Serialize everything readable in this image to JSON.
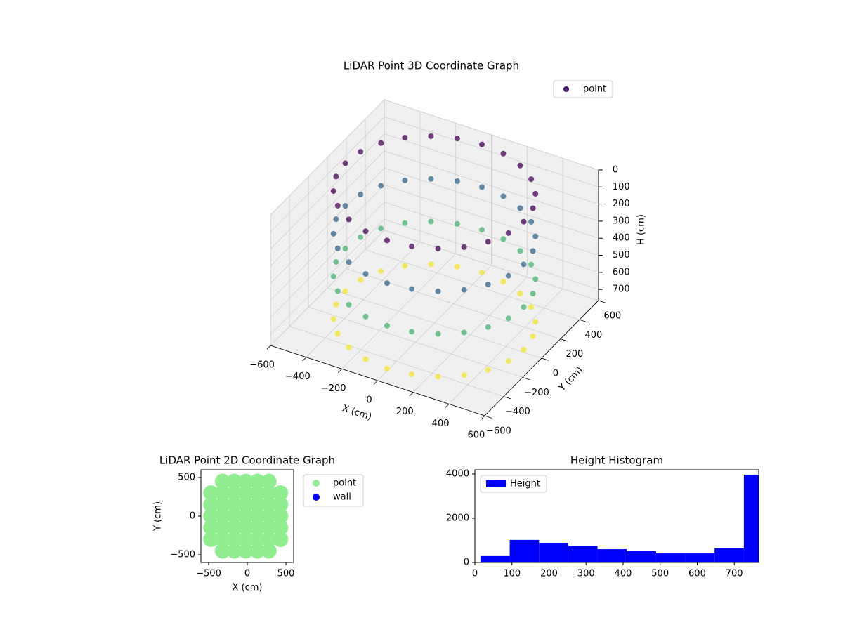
{
  "chart_data": [
    {
      "type": "scatter3d",
      "title": "LiDAR Point 3D Coordinate Graph",
      "xlabel": "X (cm)",
      "ylabel": "Y (cm)",
      "zlabel": "H (cm)",
      "xlim": [
        -600,
        600
      ],
      "ylim": [
        -600,
        600
      ],
      "zlim": [
        0,
        765
      ],
      "z_inverted": true,
      "colormap": "viridis",
      "grid": true,
      "legend": "upper right",
      "xticks": [
        {
          "value": -600,
          "label": "−600"
        },
        {
          "value": -400,
          "label": "−400"
        },
        {
          "value": -200,
          "label": "−200"
        },
        0,
        200,
        400,
        600
      ],
      "yticks": [
        {
          "value": -600,
          "label": "−600"
        },
        {
          "value": -400,
          "label": "−400"
        },
        {
          "value": -200,
          "label": "−200"
        },
        0,
        200,
        400,
        600
      ],
      "zticks": [
        0,
        100,
        200,
        300,
        400,
        500,
        600,
        700
      ],
      "series": [
        {
          "name": "point",
          "color": "#481c6e",
          "x": [
            500,
            483,
            433,
            354,
            250,
            129,
            0,
            -129,
            -250,
            -354,
            -433,
            -483,
            -500,
            -483,
            -433,
            -354,
            -250,
            -129,
            0,
            129,
            250,
            354,
            433,
            483,
            500,
            483,
            433,
            354,
            250,
            129,
            0,
            -129,
            -250,
            -354,
            -433,
            -483,
            -500,
            -483,
            -433,
            -354,
            -250,
            -129,
            0,
            129,
            250,
            354,
            433,
            483,
            500,
            483,
            433,
            354,
            250,
            129,
            0,
            -129,
            -250,
            -354,
            -433,
            -483,
            -500,
            -483,
            -433,
            -354,
            -250,
            -129,
            0,
            129,
            250,
            354,
            433,
            483,
            500,
            483,
            433,
            354,
            250,
            129,
            0,
            -129,
            -250,
            -354,
            -433,
            -483,
            -500,
            -483,
            -433,
            -354,
            -250,
            -129,
            0,
            129,
            250,
            354,
            433,
            483
          ],
          "y": [
            0,
            129,
            250,
            354,
            433,
            483,
            500,
            483,
            433,
            354,
            250,
            129,
            0,
            -129,
            -250,
            -354,
            -433,
            -483,
            -500,
            -483,
            -433,
            -354,
            -250,
            -129,
            0,
            129,
            250,
            354,
            433,
            483,
            500,
            483,
            433,
            354,
            250,
            129,
            0,
            -129,
            -250,
            -354,
            -433,
            -483,
            -500,
            -483,
            -433,
            -354,
            -250,
            -129,
            0,
            129,
            250,
            354,
            433,
            483,
            500,
            483,
            433,
            354,
            250,
            129,
            0,
            -129,
            -250,
            -354,
            -433,
            -483,
            -500,
            -483,
            -433,
            -354,
            -250,
            -129,
            0,
            129,
            250,
            354,
            433,
            483,
            500,
            483,
            433,
            354,
            250,
            129,
            0,
            -129,
            -250,
            -354,
            -433,
            -483,
            -500,
            -483,
            -433,
            -354,
            -250,
            -129
          ],
          "z": [
            0,
            0,
            0,
            0,
            0,
            0,
            0,
            0,
            0,
            0,
            0,
            0,
            0,
            0,
            0,
            0,
            0,
            0,
            0,
            0,
            0,
            0,
            0,
            0,
            250,
            250,
            250,
            250,
            250,
            250,
            250,
            250,
            250,
            250,
            250,
            250,
            250,
            250,
            250,
            250,
            250,
            250,
            250,
            250,
            250,
            250,
            250,
            250,
            500,
            500,
            500,
            500,
            500,
            500,
            500,
            500,
            500,
            500,
            500,
            500,
            500,
            500,
            500,
            500,
            500,
            500,
            500,
            500,
            500,
            500,
            500,
            500,
            750,
            750,
            750,
            750,
            750,
            750,
            750,
            750,
            750,
            750,
            750,
            750,
            750,
            750,
            750,
            750,
            750,
            750,
            750,
            750,
            750,
            750,
            750,
            750
          ]
        }
      ]
    },
    {
      "type": "scatter",
      "title": "LiDAR Point 2D Coordinate Graph",
      "xlabel": "X (cm)",
      "ylabel": "Y (cm)",
      "xlim": [
        -600,
        600
      ],
      "ylim": [
        -600,
        600
      ],
      "legend": "outside right",
      "xticks": [
        {
          "value": -500,
          "label": "−500"
        },
        0,
        500
      ],
      "yticks": [
        {
          "value": -500,
          "label": "−500"
        },
        0,
        500
      ],
      "series": [
        {
          "name": "point",
          "color": "#90ee90",
          "x": [
            -470,
            -470,
            -470,
            -470,
            -470,
            -320,
            -320,
            -320,
            -320,
            -320,
            -320,
            -320,
            -170,
            -170,
            -170,
            -170,
            -170,
            -170,
            -170,
            -20,
            -20,
            -20,
            -20,
            -20,
            -20,
            -20,
            130,
            130,
            130,
            130,
            130,
            130,
            130,
            280,
            280,
            280,
            280,
            280,
            280,
            280,
            430,
            430,
            430,
            430,
            430
          ],
          "y": [
            -300,
            -150,
            0,
            150,
            300,
            -450,
            -300,
            -150,
            0,
            150,
            300,
            450,
            -450,
            -300,
            -150,
            0,
            150,
            300,
            450,
            -450,
            -300,
            -150,
            0,
            150,
            300,
            450,
            -450,
            -300,
            -150,
            0,
            150,
            300,
            450,
            -450,
            -300,
            -150,
            0,
            150,
            300,
            450,
            -300,
            -150,
            0,
            150,
            300
          ]
        },
        {
          "name": "wall",
          "color": "#0000ff",
          "x": [],
          "y": []
        }
      ]
    },
    {
      "type": "histogram",
      "title": "Height Histogram",
      "xlim": [
        0,
        766
      ],
      "ylim": [
        0,
        4190
      ],
      "legend": "upper left",
      "xticks": [
        0,
        100,
        200,
        300,
        400,
        500,
        600,
        700
      ],
      "yticks": [
        0,
        2000,
        4000
      ],
      "series": [
        {
          "name": "Height",
          "color": "#0000ff",
          "bins": [
            15,
            94,
            173,
            252,
            331,
            410,
            489,
            568,
            647,
            726,
            766
          ],
          "values": [
            290,
            1020,
            890,
            760,
            600,
            510,
            410,
            410,
            640,
            3970
          ]
        }
      ]
    }
  ]
}
